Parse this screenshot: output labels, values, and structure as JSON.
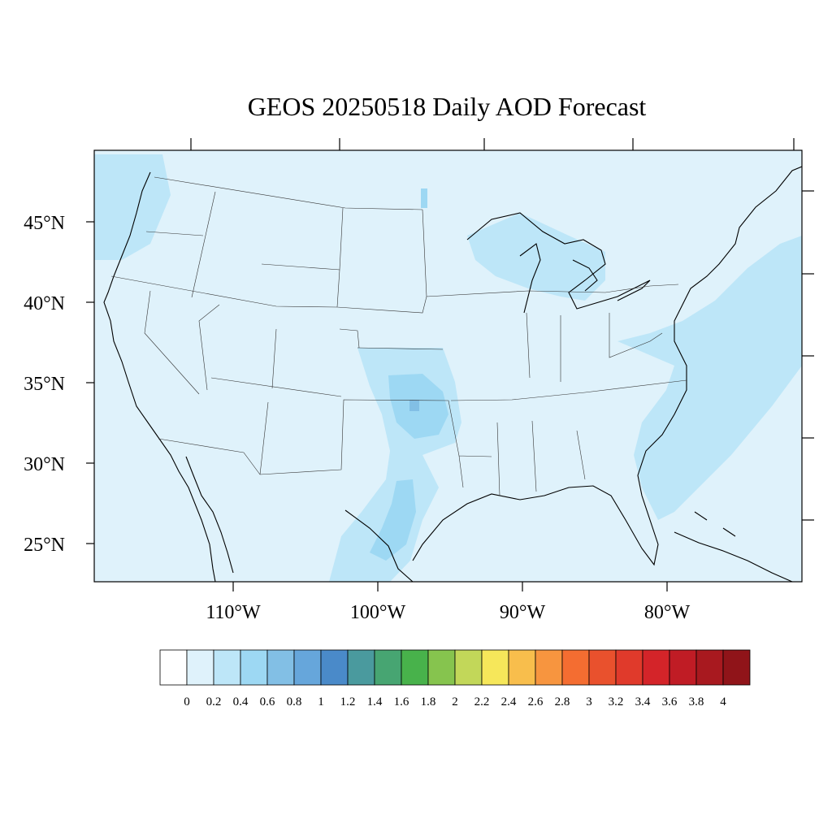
{
  "chart_data": {
    "type": "heatmap",
    "title": "GEOS 20250518 Daily AOD Forecast",
    "lat_ticks": [
      "45°N",
      "40°N",
      "35°N",
      "30°N",
      "25°N"
    ],
    "lon_ticks": [
      "110°W",
      "100°W",
      "90°W",
      "80°W"
    ],
    "colorbar": {
      "labels": [
        "0",
        "0.2",
        "0.4",
        "0.6",
        "0.8",
        "1",
        "1.2",
        "1.4",
        "1.6",
        "1.8",
        "2",
        "2.2",
        "2.4",
        "2.6",
        "2.8",
        "3",
        "3.2",
        "3.4",
        "3.6",
        "3.8",
        "4"
      ],
      "colors": [
        "#ffffff",
        "#dff2fb",
        "#bde6f8",
        "#9dd8f3",
        "#82bfe5",
        "#66a6db",
        "#4a8ac9",
        "#4a9a9e",
        "#47a572",
        "#48b24b",
        "#86c44e",
        "#c2d759",
        "#f6e75a",
        "#f8be4c",
        "#f7953f",
        "#f46d31",
        "#e9512d",
        "#e03a2b",
        "#d42429",
        "#c01c25",
        "#a8191f",
        "#901419"
      ]
    },
    "regions": [
      {
        "name": "background",
        "level": 1
      },
      {
        "name": "southern-plains-plume",
        "level": 2
      },
      {
        "name": "oklahoma-core",
        "level": 3
      },
      {
        "name": "south-texas-plume",
        "level": 3
      },
      {
        "name": "atlantic-band",
        "level": 2
      },
      {
        "name": "pacific-northwest",
        "level": 2
      },
      {
        "name": "great-lakes",
        "level": 2
      }
    ]
  }
}
